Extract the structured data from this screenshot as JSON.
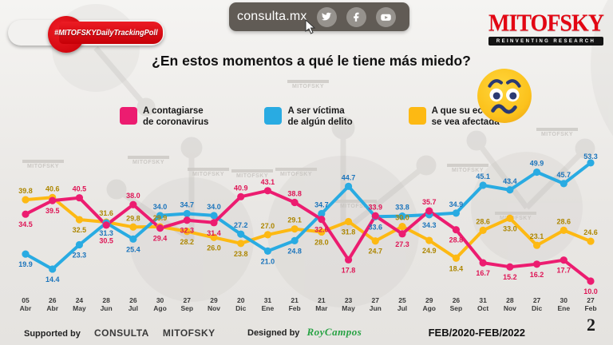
{
  "topbar": {
    "site": "consulta.mx",
    "icons": [
      "twitter-icon",
      "facebook-icon",
      "youtube-icon"
    ]
  },
  "hashtag_banner": "#MITOFSKYDailyTrackingPoll",
  "logo": {
    "name": "MITOFSKY",
    "tagline": "REINVENTING RESEARCH"
  },
  "watermark": "MITOFSKY",
  "title": "¿En estos momentos a qué le tiene más miedo?",
  "legend": [
    {
      "line1": "A contagiarse",
      "line2": "de coronavirus",
      "color": "#EC1C70"
    },
    {
      "line1": "A ser víctima",
      "line2": "de algún delito",
      "color": "#29ABE2"
    },
    {
      "line1": "A que su economía",
      "line2": "se vea afectada",
      "color": "#FDB913"
    }
  ],
  "emoji": "worried-face",
  "chart_data": {
    "type": "line",
    "x": [
      "05 Abr",
      "26 Abr",
      "24 May",
      "28 Jun",
      "26 Jul",
      "30 Ago",
      "27 Sep",
      "29 Nov",
      "20 Dic",
      "31 Ene",
      "21 Feb",
      "21 Mar",
      "23 May",
      "27 Jun",
      "25 Jul",
      "29 Ago",
      "26 Sep",
      "31 Oct",
      "28 Nov",
      "27 Dic",
      "30 Ene",
      "27 Feb"
    ],
    "series": [
      {
        "name": "A que su economía se vea afectada",
        "color": "#FDB913",
        "label_color": "#AD8600",
        "values": [
          39.8,
          40.6,
          32.5,
          31.6,
          29.8,
          29.9,
          28.2,
          26.0,
          23.8,
          27.0,
          29.1,
          28.0,
          31.8,
          24.7,
          30.0,
          24.9,
          18.4,
          28.6,
          33.0,
          23.1,
          28.6,
          24.6
        ]
      },
      {
        "name": "A ser víctima de algún delito",
        "color": "#29ABE2",
        "label_color": "#1B74BB",
        "values": [
          19.9,
          14.4,
          23.3,
          31.3,
          25.4,
          34.0,
          34.7,
          34.0,
          27.2,
          21.0,
          24.8,
          34.7,
          44.7,
          33.6,
          33.8,
          34.3,
          34.9,
          45.1,
          43.4,
          49.9,
          45.7,
          53.3
        ]
      },
      {
        "name": "A contagiarse de coronavirus",
        "color": "#EC1C70",
        "label_color": "#DE1556",
        "values": [
          34.5,
          39.5,
          40.5,
          30.5,
          38.0,
          29.4,
          32.3,
          31.4,
          40.9,
          43.1,
          38.8,
          32.6,
          17.8,
          33.9,
          27.3,
          35.7,
          28.8,
          16.7,
          15.2,
          16.2,
          17.7,
          10.0
        ]
      }
    ],
    "ylim": [
      8,
      57
    ],
    "grid": false,
    "legend_position": "top",
    "value_labels": true
  },
  "footer": {
    "supported_by": "Supported by",
    "supporters": [
      "CONSULTA",
      "MITOFSKY"
    ],
    "designed_by": "Designed by",
    "designer": "RoyCampos",
    "period": "FEB/2020-FEB/2022",
    "page": "2"
  }
}
